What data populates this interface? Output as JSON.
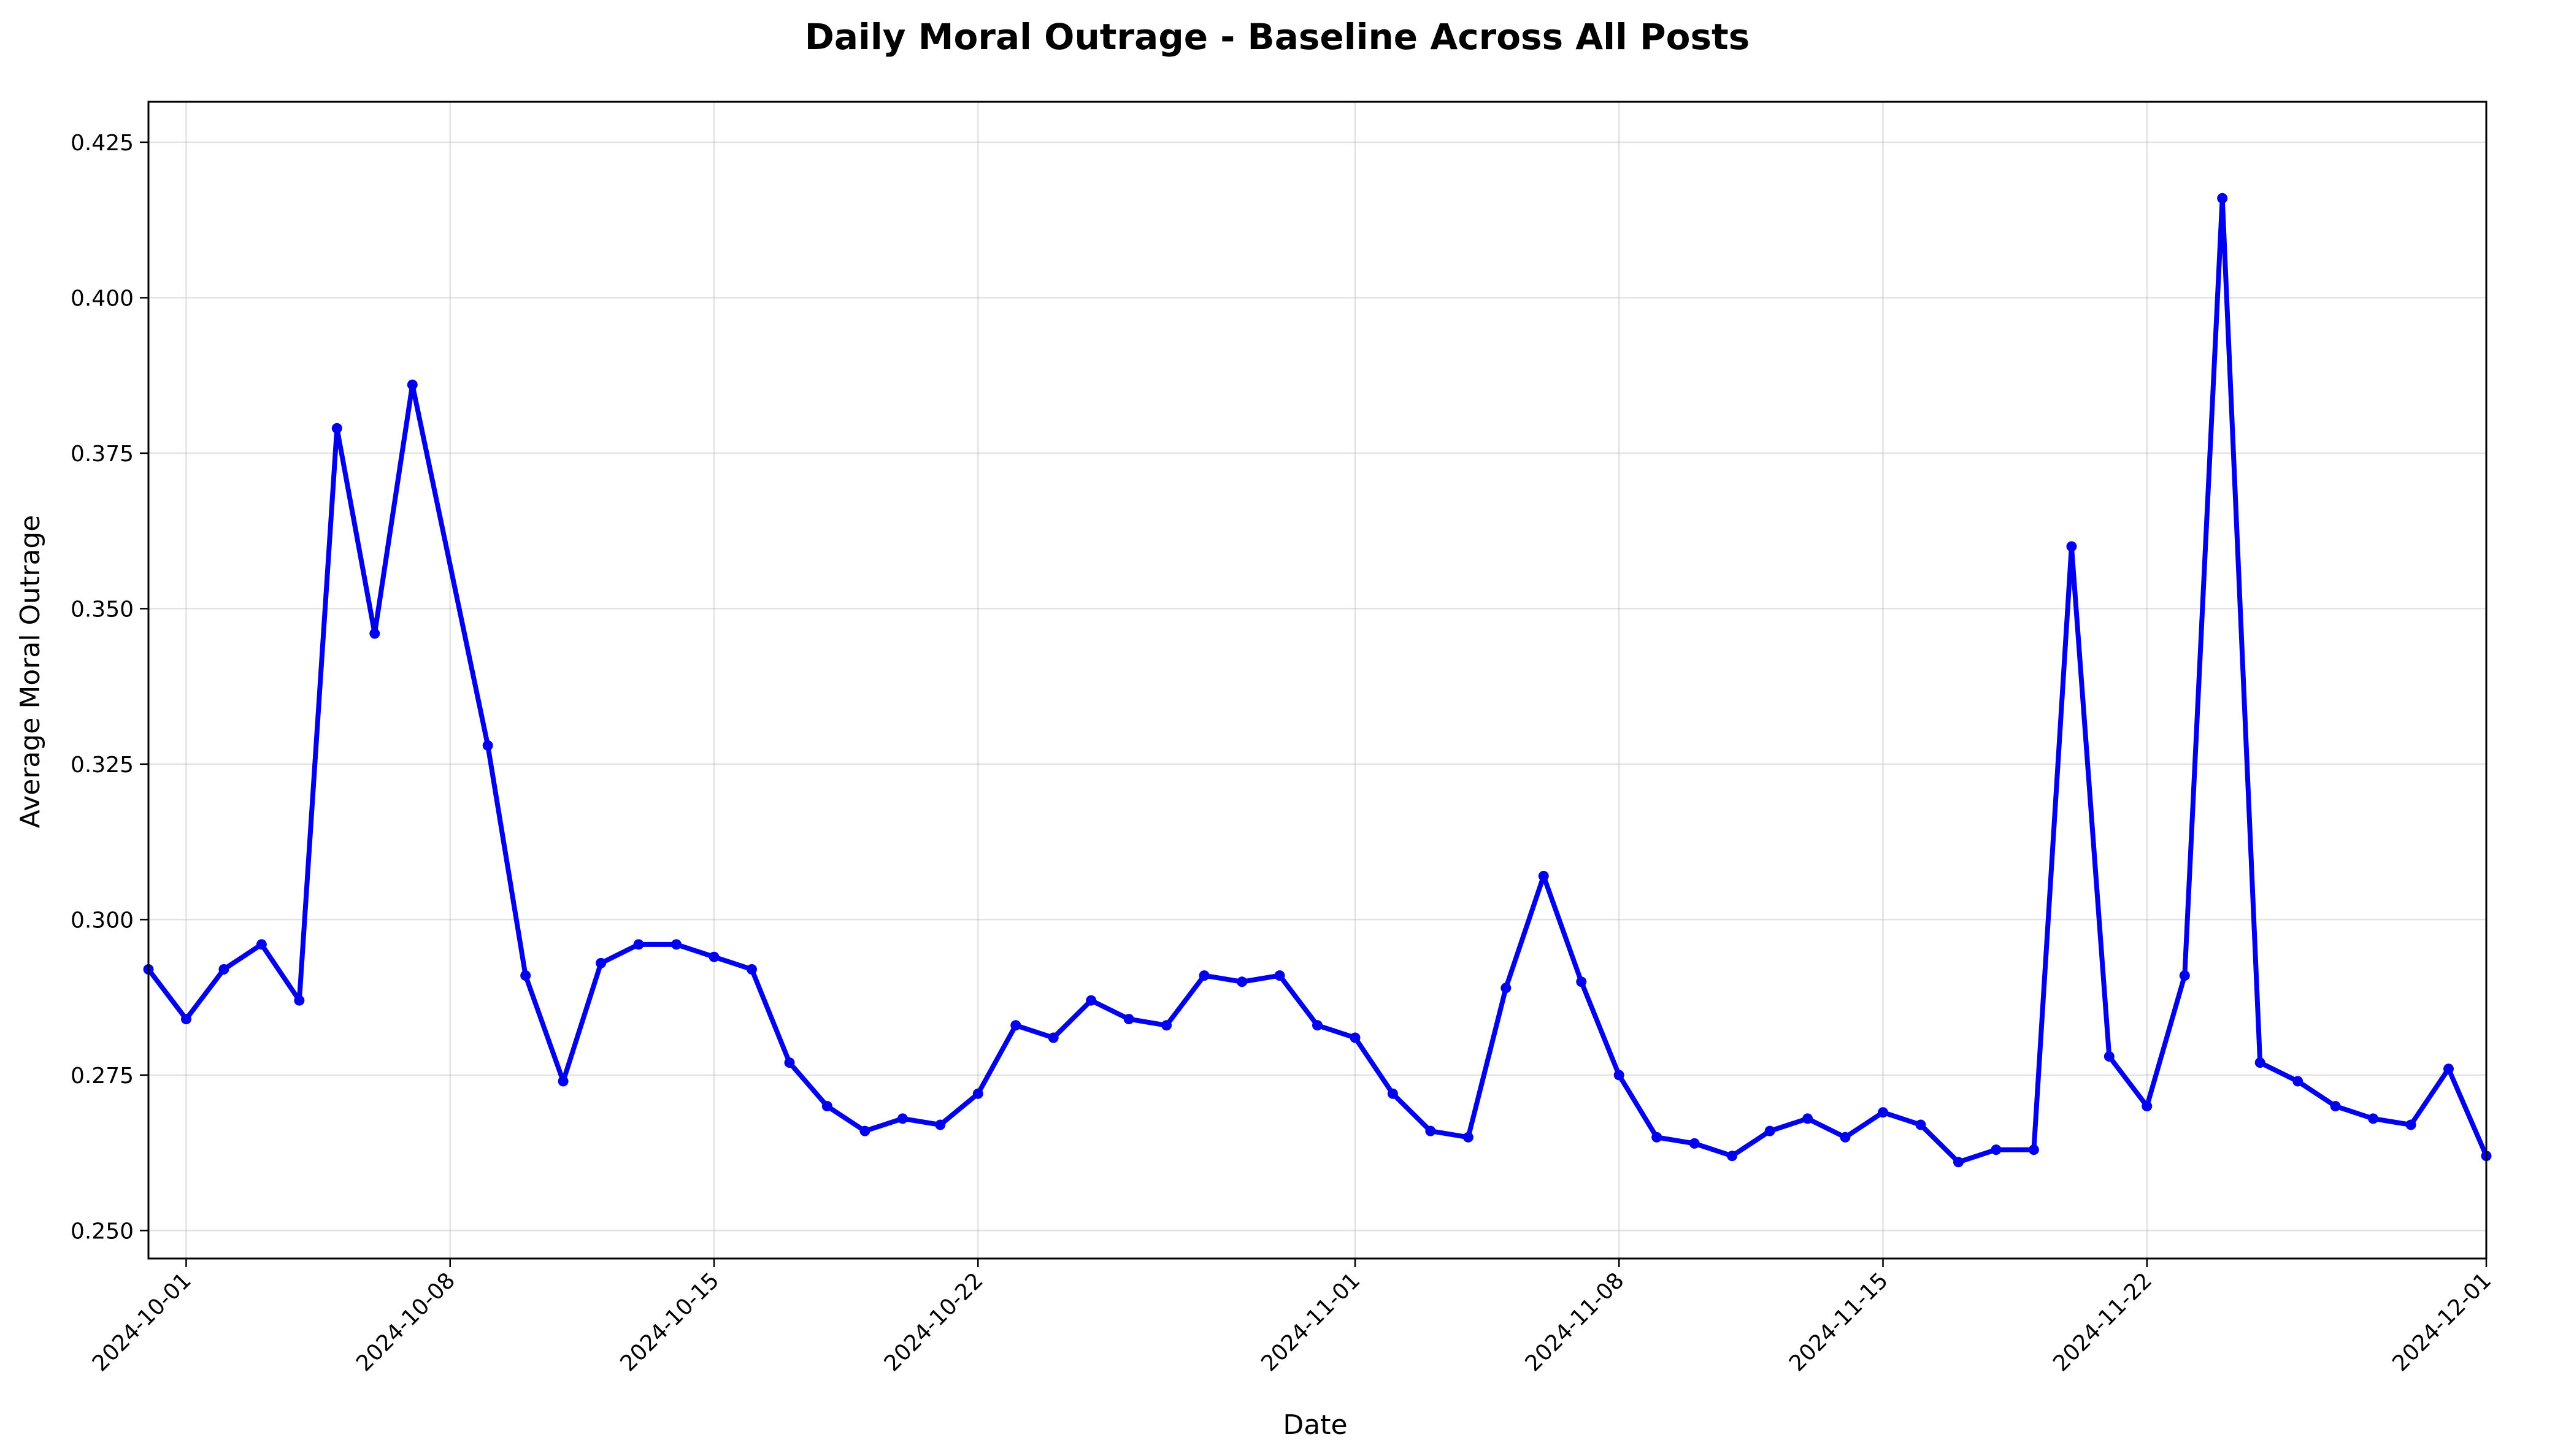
{
  "chart_data": {
    "type": "line",
    "title": "Daily Moral Outrage - Baseline Across All Posts",
    "xlabel": "Date",
    "ylabel": "Average Moral Outrage",
    "xlim": [
      "2024-09-30",
      "2024-12-01"
    ],
    "ylim": [
      0.2455,
      0.4315
    ],
    "x_ticks": [
      "2024-10-01",
      "2024-10-08",
      "2024-10-15",
      "2024-10-22",
      "2024-11-01",
      "2024-11-08",
      "2024-11-15",
      "2024-11-22",
      "2024-12-01"
    ],
    "y_ticks": [
      "0.250",
      "0.275",
      "0.300",
      "0.325",
      "0.350",
      "0.375",
      "0.400",
      "0.425"
    ],
    "grid": true,
    "legend": "none",
    "x_tick_rotation": 45,
    "color": "#0000ee",
    "series": [
      {
        "x": [
          "2024-09-30",
          "2024-10-01",
          "2024-10-02",
          "2024-10-03",
          "2024-10-04",
          "2024-10-05",
          "2024-10-06",
          "2024-10-07",
          "2024-10-09",
          "2024-10-10",
          "2024-10-11",
          "2024-10-12",
          "2024-10-13",
          "2024-10-14",
          "2024-10-15",
          "2024-10-16",
          "2024-10-17",
          "2024-10-18",
          "2024-10-19",
          "2024-10-20",
          "2024-10-21",
          "2024-10-22",
          "2024-10-23",
          "2024-10-24",
          "2024-10-25",
          "2024-10-26",
          "2024-10-27",
          "2024-10-28",
          "2024-10-29",
          "2024-10-30",
          "2024-10-31",
          "2024-11-01",
          "2024-11-02",
          "2024-11-03",
          "2024-11-04",
          "2024-11-05",
          "2024-11-06",
          "2024-11-07",
          "2024-11-08",
          "2024-11-09",
          "2024-11-10",
          "2024-11-11",
          "2024-11-12",
          "2024-11-13",
          "2024-11-14",
          "2024-11-15",
          "2024-11-16",
          "2024-11-17",
          "2024-11-18",
          "2024-11-19",
          "2024-11-20",
          "2024-11-21",
          "2024-11-22",
          "2024-11-23",
          "2024-11-24",
          "2024-11-25",
          "2024-11-26",
          "2024-11-27",
          "2024-11-28",
          "2024-11-29",
          "2024-11-30",
          "2024-12-01"
        ],
        "values": [
          0.292,
          0.284,
          0.292,
          0.296,
          0.287,
          0.379,
          0.346,
          0.386,
          0.328,
          0.291,
          0.274,
          0.293,
          0.296,
          0.296,
          0.294,
          0.292,
          0.277,
          0.27,
          0.266,
          0.268,
          0.267,
          0.272,
          0.283,
          0.281,
          0.287,
          0.284,
          0.283,
          0.291,
          0.29,
          0.291,
          0.283,
          0.281,
          0.272,
          0.266,
          0.265,
          0.289,
          0.307,
          0.29,
          0.275,
          0.265,
          0.264,
          0.262,
          0.266,
          0.268,
          0.265,
          0.269,
          0.267,
          0.261,
          0.263,
          0.263,
          0.36,
          0.278,
          0.27,
          0.291,
          0.416,
          0.277,
          0.274,
          0.27,
          0.268,
          0.267,
          0.276,
          0.262
        ]
      }
    ]
  }
}
